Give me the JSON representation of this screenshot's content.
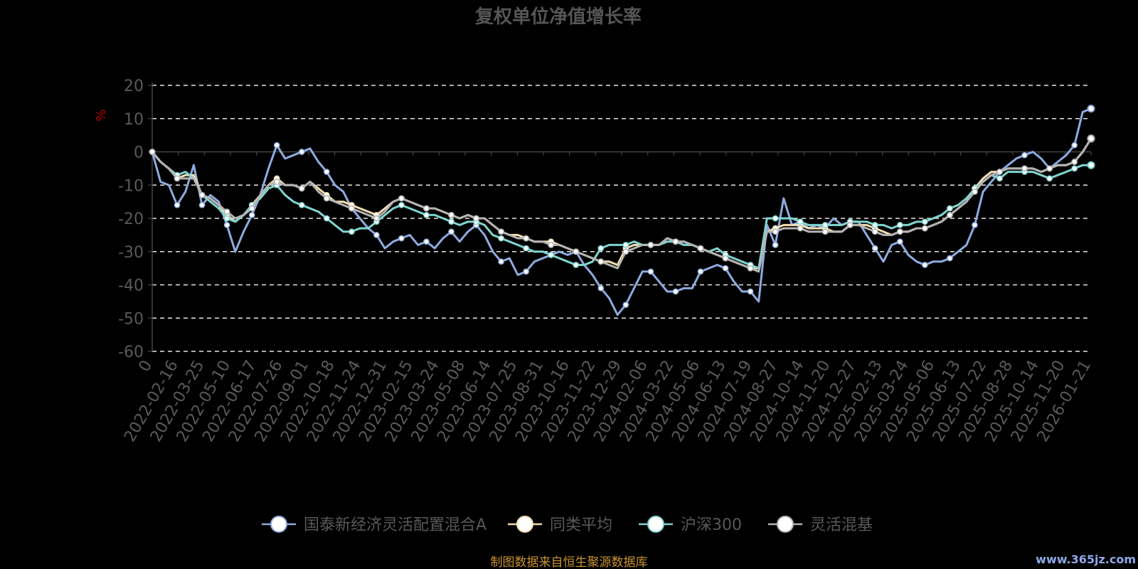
{
  "chart_data": {
    "type": "line",
    "title": "复权单位净值增长率",
    "ylabel": "%",
    "ylim": [
      -60,
      20
    ],
    "yticks": [
      20,
      10,
      0,
      -10,
      -20,
      -30,
      -40,
      -50,
      -60
    ],
    "xtick_labels": [
      "0",
      "2022-02-16",
      "2022-03-25",
      "2022-05-10",
      "2022-06-17",
      "2022-07-26",
      "2022-09-01",
      "2022-10-18",
      "2022-11-24",
      "2022-12-31",
      "2023-02-15",
      "2023-03-24",
      "2023-05-08",
      "2023-06-14",
      "2023-07-25",
      "2023-08-31",
      "2023-10-16",
      "2023-11-22",
      "2023-12-29",
      "2024-02-06",
      "2024-03-22",
      "2024-05-06",
      "2024-06-13",
      "2024-07-19",
      "2024-08-27",
      "2024-10-14",
      "2024-11-20",
      "2024-12-27",
      "2025-02-13",
      "2025-03-24",
      "2025-05-06",
      "2025-06-13",
      "2025-07-22",
      "2025-08-28",
      "2025-10-14",
      "2025-11-20",
      "2026-01-21"
    ],
    "grid": "horizontal dashed",
    "legend_position": "bottom",
    "series": [
      {
        "name": "国泰新经济灵活配置混合A",
        "color": "#8eabe0",
        "values": [
          0,
          -9,
          -10,
          -16,
          -12,
          -4,
          -16,
          -13,
          -15,
          -22,
          -30,
          -24,
          -19,
          -13,
          -5,
          2,
          -2,
          -1,
          0,
          1,
          -3,
          -6,
          -10,
          -12,
          -17,
          -20,
          -23,
          -25,
          -29,
          -27,
          -26,
          -25,
          -28,
          -27,
          -29,
          -26,
          -24,
          -27,
          -24,
          -22,
          -25,
          -30,
          -33,
          -32,
          -37,
          -36,
          -33,
          -32,
          -31,
          -30,
          -31,
          -30,
          -34,
          -37,
          -41,
          -44,
          -49,
          -46,
          -41,
          -36,
          -36,
          -39,
          -42,
          -42,
          -41,
          -41,
          -36,
          -35,
          -34,
          -35,
          -39,
          -42,
          -42,
          -45,
          -22,
          -28,
          -14,
          -22,
          -21,
          -23,
          -22,
          -23,
          -20,
          -22,
          -21,
          -21,
          -25,
          -29,
          -33,
          -28,
          -27,
          -31,
          -33,
          -34,
          -33,
          -33,
          -32,
          -30,
          -28,
          -22,
          -12,
          -9,
          -6,
          -4,
          -2,
          -1,
          0,
          -2,
          -5,
          -3,
          -1,
          2,
          12,
          13
        ]
      },
      {
        "name": "同类平均",
        "color": "#f3dcb0",
        "values": [
          0,
          -3,
          -5,
          -8,
          -7,
          -7,
          -13,
          -14,
          -16,
          -19,
          -21,
          -19,
          -16,
          -13,
          -10,
          -8,
          -10,
          -10,
          -11,
          -9,
          -11,
          -13,
          -15,
          -15,
          -16,
          -17,
          -18,
          -19,
          -17,
          -15,
          -14,
          -15,
          -16,
          -17,
          -17,
          -18,
          -19,
          -20,
          -19,
          -20,
          -20,
          -22,
          -24,
          -25,
          -25,
          -26,
          -27,
          -27,
          -27,
          -28,
          -29,
          -30,
          -31,
          -32,
          -33,
          -33,
          -34,
          -29,
          -28,
          -28,
          -28,
          -28,
          -26,
          -27,
          -27,
          -28,
          -29,
          -30,
          -31,
          -32,
          -33,
          -34,
          -35,
          -35,
          -24,
          -23,
          -22,
          -22,
          -22,
          -23,
          -23,
          -23,
          -24,
          -24,
          -22,
          -22,
          -22,
          -23,
          -24,
          -25,
          -24,
          -24,
          -23,
          -23,
          -22,
          -21,
          -19,
          -17,
          -15,
          -11,
          -8,
          -6,
          -6,
          -5,
          -5,
          -5,
          -5,
          -6,
          -5,
          -4,
          -4,
          -3,
          0,
          4
        ]
      },
      {
        "name": "沪深300",
        "color": "#7fd6d0",
        "values": [
          0,
          -3,
          -5,
          -7,
          -6,
          -8,
          -13,
          -15,
          -17,
          -20,
          -21,
          -19,
          -16,
          -14,
          -11,
          -10,
          -13,
          -15,
          -16,
          -17,
          -18,
          -20,
          -22,
          -24,
          -24,
          -23,
          -23,
          -21,
          -19,
          -17,
          -16,
          -17,
          -18,
          -19,
          -19,
          -20,
          -21,
          -22,
          -21,
          -21,
          -22,
          -25,
          -26,
          -27,
          -28,
          -29,
          -30,
          -30,
          -31,
          -32,
          -33,
          -34,
          -34,
          -33,
          -29,
          -28,
          -28,
          -28,
          -27,
          -28,
          -28,
          -28,
          -27,
          -27,
          -28,
          -28,
          -29,
          -30,
          -29,
          -31,
          -32,
          -33,
          -34,
          -35,
          -20,
          -20,
          -20,
          -20,
          -21,
          -22,
          -22,
          -22,
          -22,
          -22,
          -21,
          -21,
          -21,
          -22,
          -22,
          -23,
          -22,
          -22,
          -21,
          -21,
          -20,
          -19,
          -17,
          -16,
          -14,
          -11,
          -9,
          -7,
          -8,
          -6,
          -6,
          -6,
          -6,
          -7,
          -8,
          -7,
          -6,
          -5,
          -4,
          -4
        ]
      },
      {
        "name": "灵活混基",
        "color": "#b4b4b4",
        "values": [
          0,
          -3,
          -5,
          -8,
          -8,
          -8,
          -13,
          -14,
          -16,
          -18,
          -20,
          -19,
          -17,
          -13,
          -10,
          -9,
          -10,
          -10,
          -11,
          -9,
          -12,
          -14,
          -15,
          -16,
          -17,
          -18,
          -19,
          -20,
          -18,
          -15,
          -14,
          -15,
          -16,
          -17,
          -17,
          -18,
          -19,
          -20,
          -19,
          -20,
          -20,
          -22,
          -24,
          -25,
          -26,
          -26,
          -27,
          -27,
          -28,
          -28,
          -29,
          -30,
          -31,
          -32,
          -33,
          -34,
          -35,
          -30,
          -29,
          -28,
          -28,
          -28,
          -26,
          -27,
          -27,
          -28,
          -29,
          -30,
          -31,
          -32,
          -33,
          -34,
          -35,
          -36,
          -24,
          -24,
          -23,
          -23,
          -23,
          -24,
          -24,
          -24,
          -24,
          -24,
          -22,
          -22,
          -23,
          -24,
          -25,
          -25,
          -24,
          -24,
          -23,
          -23,
          -22,
          -21,
          -19,
          -17,
          -15,
          -12,
          -9,
          -7,
          -6,
          -5,
          -5,
          -5,
          -5,
          -6,
          -5,
          -4,
          -4,
          -3,
          0,
          4
        ]
      }
    ]
  },
  "source_note": "制图数据来自恒生聚源数据库",
  "watermark": "www.365jz.com"
}
